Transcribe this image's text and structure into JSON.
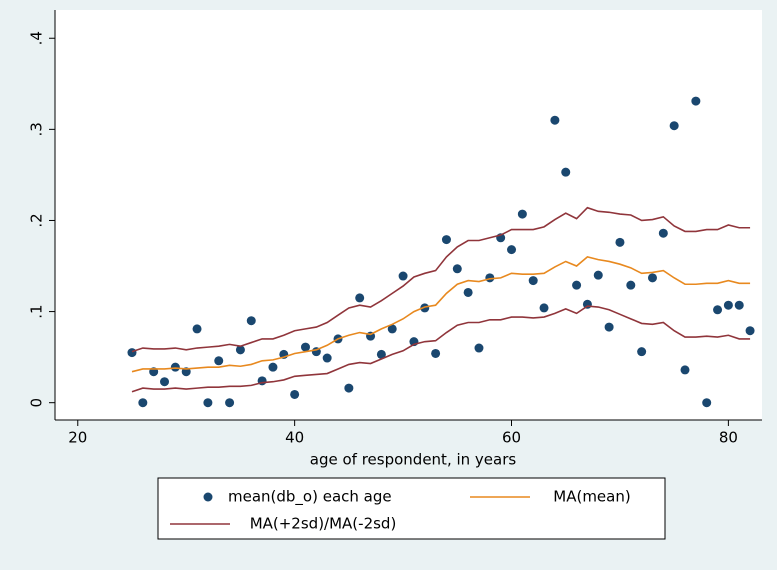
{
  "chart_data": {
    "type": "scatter",
    "x_label": "age of respondent, in years",
    "xlim": [
      17.9,
      83.1
    ],
    "xticks": [
      20,
      40,
      60,
      80
    ],
    "ylim": [
      -0.019,
      0.431
    ],
    "yticks": [
      0,
      {
        "value": 0.1,
        "label": ".1"
      },
      {
        "value": 0.2,
        "label": ".2"
      },
      {
        "value": 0.3,
        "label": ".3"
      },
      {
        "value": 0.4,
        "label": ".4"
      }
    ],
    "x": [
      25,
      26,
      27,
      28,
      29,
      30,
      31,
      32,
      33,
      34,
      35,
      36,
      37,
      38,
      39,
      40,
      41,
      42,
      43,
      44,
      45,
      46,
      47,
      48,
      49,
      50,
      51,
      52,
      53,
      54,
      55,
      56,
      57,
      58,
      59,
      60,
      61,
      62,
      63,
      64,
      65,
      66,
      67,
      68,
      69,
      70,
      71,
      72,
      73,
      74,
      75,
      76,
      77,
      78,
      79,
      80,
      81,
      82
    ],
    "series": [
      {
        "name": "mean(db_o) each age",
        "kind": "markers",
        "color": "#1a476f",
        "values": [
          0.055,
          0,
          0.034,
          0.023,
          0.039,
          0.034,
          0.081,
          0,
          0.046,
          0,
          0.058,
          0.09,
          0.024,
          0.039,
          0.053,
          0.009,
          0.061,
          0.056,
          0.049,
          0.07,
          0.016,
          0.115,
          0.073,
          0.053,
          0.081,
          0.139,
          0.067,
          0.104,
          0.054,
          0.179,
          0.147,
          0.121,
          0.06,
          0.137,
          0.181,
          0.168,
          0.207,
          0.134,
          0.104,
          0.31,
          0.253,
          0.129,
          0.108,
          0.14,
          0.083,
          0.176,
          0.129,
          0.056,
          0.137,
          0.186,
          0.304,
          0.036,
          0.331,
          0,
          0.102,
          0.107,
          0.107,
          0.079
        ]
      },
      {
        "name": "MA(mean)",
        "kind": "line",
        "color": "#e8891f",
        "values": [
          0.034,
          0.037,
          0.037,
          0.037,
          0.038,
          0.037,
          0.038,
          0.039,
          0.039,
          0.041,
          0.04,
          0.042,
          0.046,
          0.047,
          0.05,
          0.054,
          0.056,
          0.058,
          0.063,
          0.07,
          0.074,
          0.077,
          0.075,
          0.081,
          0.086,
          0.092,
          0.1,
          0.105,
          0.107,
          0.12,
          0.13,
          0.134,
          0.133,
          0.136,
          0.137,
          0.142,
          0.141,
          0.141,
          0.142,
          0.149,
          0.155,
          0.15,
          0.16,
          0.157,
          0.155,
          0.152,
          0.148,
          0.142,
          0.143,
          0.145,
          0.137,
          0.13,
          0.13,
          0.131,
          0.131,
          0.134,
          0.131,
          0.131
        ]
      },
      {
        "name": "MA(+2sd)/MA(-2sd)",
        "kind": "band-lines",
        "color": "#90353b",
        "upper": [
          0.056,
          0.06,
          0.059,
          0.059,
          0.06,
          0.058,
          0.06,
          0.061,
          0.062,
          0.064,
          0.062,
          0.066,
          0.07,
          0.07,
          0.074,
          0.079,
          0.081,
          0.083,
          0.088,
          0.096,
          0.104,
          0.107,
          0.105,
          0.112,
          0.12,
          0.128,
          0.138,
          0.142,
          0.145,
          0.16,
          0.171,
          0.178,
          0.178,
          0.181,
          0.184,
          0.19,
          0.19,
          0.19,
          0.193,
          0.201,
          0.208,
          0.202,
          0.214,
          0.21,
          0.209,
          0.207,
          0.206,
          0.2,
          0.201,
          0.204,
          0.194,
          0.188,
          0.188,
          0.19,
          0.19,
          0.195,
          0.192,
          0.192
        ],
        "lower": [
          0.012,
          0.016,
          0.015,
          0.015,
          0.016,
          0.015,
          0.016,
          0.017,
          0.017,
          0.018,
          0.018,
          0.019,
          0.022,
          0.023,
          0.025,
          0.029,
          0.03,
          0.031,
          0.032,
          0.037,
          0.042,
          0.044,
          0.043,
          0.048,
          0.053,
          0.057,
          0.064,
          0.067,
          0.068,
          0.077,
          0.085,
          0.088,
          0.088,
          0.091,
          0.091,
          0.094,
          0.094,
          0.093,
          0.094,
          0.098,
          0.103,
          0.098,
          0.106,
          0.105,
          0.102,
          0.097,
          0.092,
          0.087,
          0.086,
          0.088,
          0.079,
          0.072,
          0.072,
          0.073,
          0.072,
          0.074,
          0.07,
          0.07
        ]
      }
    ]
  }
}
